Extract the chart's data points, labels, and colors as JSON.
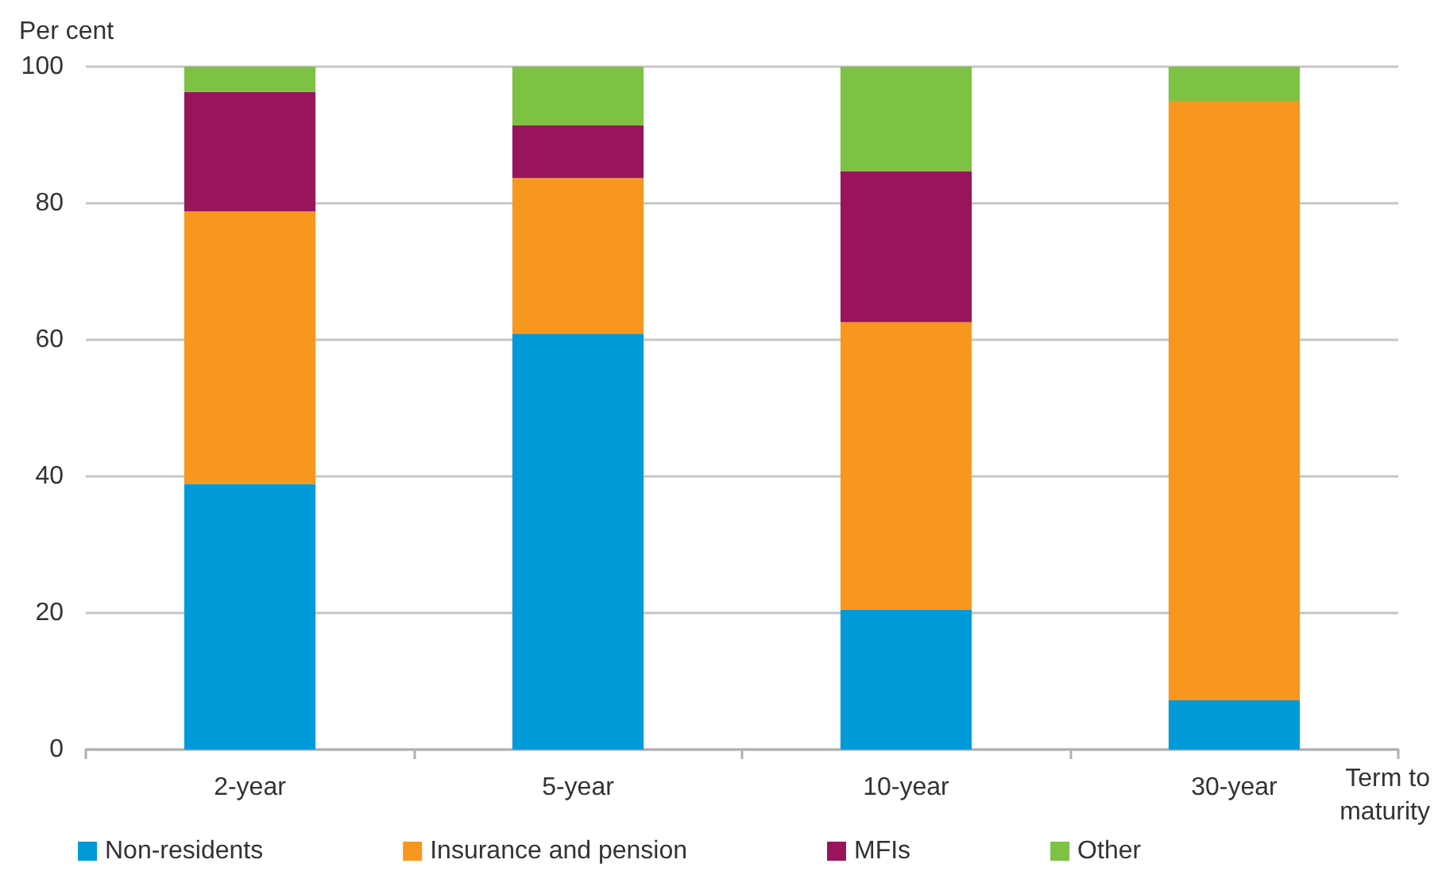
{
  "chart_data": {
    "type": "bar",
    "stacked": true,
    "ylabel": "Per cent",
    "xlabel": "Term to maturity",
    "categories": [
      "2-year",
      "5-year",
      "10-year",
      "30-year"
    ],
    "series": [
      {
        "name": "Non-residents",
        "color": "#009ad8",
        "values": [
          38.9,
          60.9,
          20.5,
          7.2
        ]
      },
      {
        "name": "Insurance and pension",
        "color": "#f7971e",
        "values": [
          39.9,
          22.8,
          42.1,
          87.8
        ]
      },
      {
        "name": "MFIs",
        "color": "#98155c",
        "values": [
          17.5,
          7.7,
          22.1,
          null
        ]
      },
      {
        "name": "Other",
        "color": "#7dc242",
        "values": [
          3.7,
          8.6,
          15.3,
          5.0
        ]
      }
    ],
    "ylim": [
      0,
      100
    ],
    "yticks": [
      0,
      20,
      40,
      60,
      80,
      100
    ],
    "grid": "y",
    "legend": "bottom left"
  }
}
